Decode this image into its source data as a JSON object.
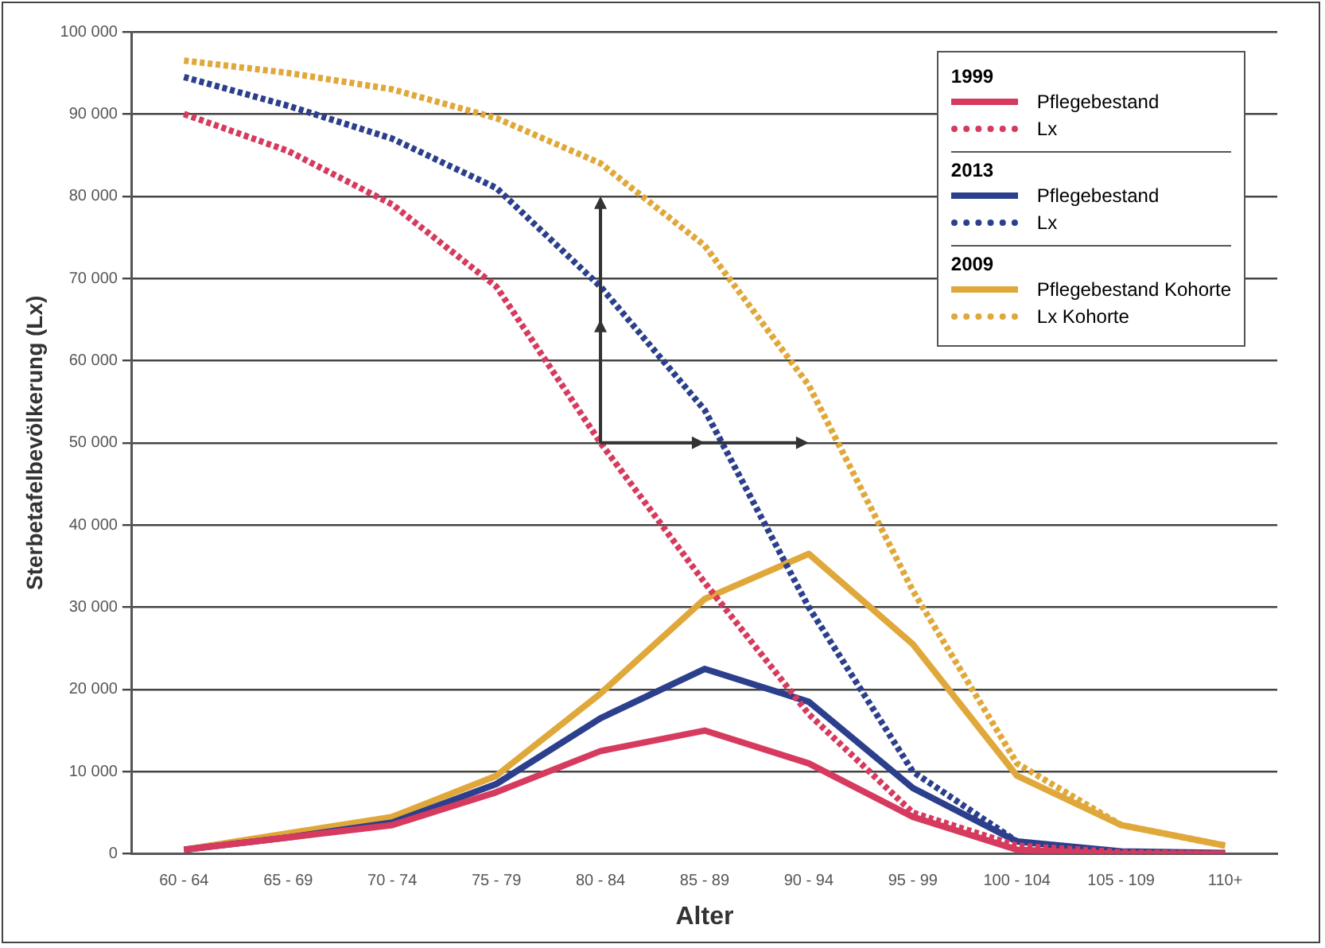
{
  "chart_data": {
    "type": "line",
    "xlabel": "Alter",
    "ylabel": "Sterbetafelbevölkerung (Lx)",
    "categories": [
      "60 - 64",
      "65 - 69",
      "70 - 74",
      "75 - 79",
      "80 - 84",
      "85 - 89",
      "90 - 94",
      "95 - 99",
      "100 - 104",
      "105 - 109",
      "110+"
    ],
    "series": [
      {
        "name": "Pflegebestand",
        "color": "#d63a5e",
        "line_style": "solid",
        "values": [
          500,
          2000,
          3500,
          7500,
          12500,
          15000,
          11000,
          4500,
          500,
          0,
          0
        ]
      },
      {
        "name": "Lx",
        "color": "#d63a5e",
        "line_style": "dotted",
        "values": [
          90000,
          85500,
          79000,
          69000,
          50000,
          33000,
          17000,
          5000,
          1000,
          200,
          0
        ]
      },
      {
        "name": "Pflegebestand",
        "color": "#2b3f8c",
        "line_style": "solid",
        "values": [
          500,
          2000,
          3800,
          8500,
          16500,
          22500,
          18500,
          8000,
          1500,
          300,
          100
        ]
      },
      {
        "name": "Lx",
        "color": "#2b3f8c",
        "line_style": "dotted",
        "values": [
          94500,
          91000,
          87000,
          81000,
          69000,
          54000,
          30000,
          10000,
          1500,
          200,
          0
        ]
      },
      {
        "name": "Pflegebestand Kohorte",
        "color": "#e0a83a",
        "line_style": "solid",
        "values": [
          500,
          2500,
          4500,
          9500,
          19500,
          31000,
          36500,
          25500,
          9500,
          3500,
          1000
        ]
      },
      {
        "name": "Lx Kohorte",
        "color": "#e0a83a",
        "line_style": "dotted",
        "values": [
          96500,
          95000,
          93000,
          89500,
          84000,
          74000,
          57000,
          32000,
          11000,
          3500,
          1000
        ]
      }
    ],
    "annotations": [
      "1999",
      "2013",
      "2009"
    ],
    "ylim": [
      0,
      100000
    ],
    "yticks": [
      {
        "value": 0,
        "label": "0"
      },
      {
        "value": 10000,
        "label": "10 000"
      },
      {
        "value": 20000,
        "label": "20 000"
      },
      {
        "value": 30000,
        "label": "30 000"
      },
      {
        "value": 40000,
        "label": "40 000"
      },
      {
        "value": 50000,
        "label": "50 000"
      },
      {
        "value": 60000,
        "label": "60 000"
      },
      {
        "value": 70000,
        "label": "70 000"
      },
      {
        "value": 80000,
        "label": "80 000"
      },
      {
        "value": 90000,
        "label": "90 000"
      },
      {
        "value": 100000,
        "label": "100 000"
      }
    ],
    "grid": "y",
    "legend": "top right",
    "marker": "none"
  }
}
